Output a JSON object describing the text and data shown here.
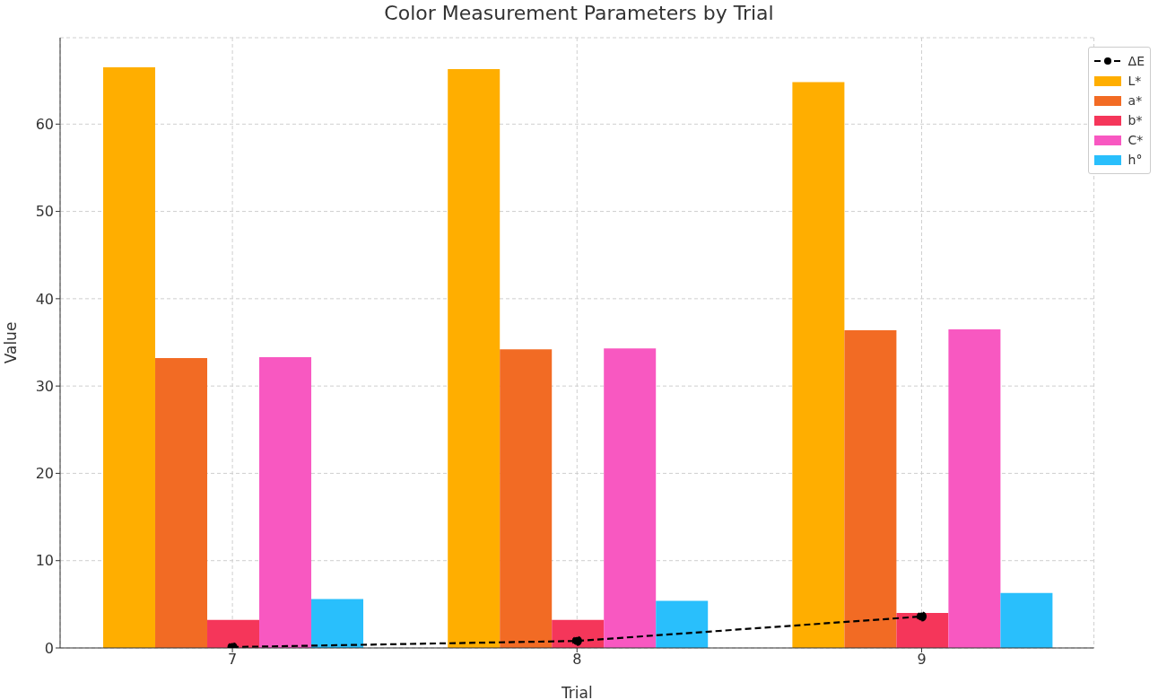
{
  "chart_data": {
    "type": "bar",
    "title": "Color Measurement Parameters by Trial",
    "xlabel": "Trial",
    "ylabel": "Value",
    "categories": [
      "7",
      "8",
      "9"
    ],
    "series": [
      {
        "name": "ΔE",
        "type": "line",
        "color": "#000000",
        "values": [
          0.1,
          0.8,
          3.6
        ],
        "marker": "circle",
        "line_style": "dashed"
      },
      {
        "name": "L*",
        "color": "#ffae00",
        "values": [
          66.5,
          66.3,
          64.8
        ]
      },
      {
        "name": "a*",
        "color": "#f26b24",
        "values": [
          33.2,
          34.2,
          36.4
        ]
      },
      {
        "name": "b*",
        "color": "#f5365a",
        "values": [
          3.2,
          3.2,
          4.0
        ]
      },
      {
        "name": "C*",
        "color": "#f858c1",
        "values": [
          33.3,
          34.3,
          36.5
        ]
      },
      {
        "name": "h°",
        "color": "#29bffc",
        "values": [
          5.6,
          5.4,
          6.3
        ]
      }
    ],
    "ylim": [
      0,
      69.9
    ],
    "yticks": [
      0,
      10,
      20,
      30,
      40,
      50,
      60
    ],
    "grid": true,
    "legend": "top right"
  }
}
